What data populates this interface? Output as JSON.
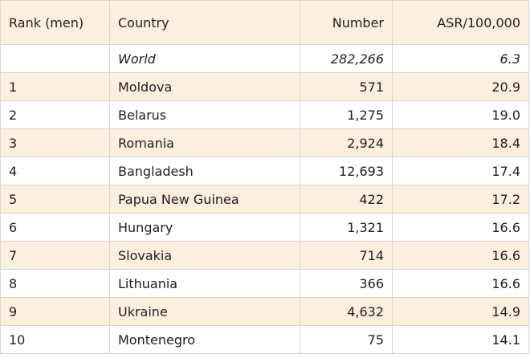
{
  "columns": [
    "Rank (men)",
    "Country",
    "Number",
    "ASR/100,000"
  ],
  "world_row": {
    "rank": "",
    "country": "World",
    "number": "282,266",
    "asr": "6.3"
  },
  "rows": [
    {
      "rank": "1",
      "country": "Moldova",
      "number": "571",
      "asr": "20.9"
    },
    {
      "rank": "2",
      "country": "Belarus",
      "number": "1,275",
      "asr": "19.0"
    },
    {
      "rank": "3",
      "country": "Romania",
      "number": "2,924",
      "asr": "18.4"
    },
    {
      "rank": "4",
      "country": "Bangladesh",
      "number": "12,693",
      "asr": "17.4"
    },
    {
      "rank": "5",
      "country": "Papua New Guinea",
      "number": "422",
      "asr": "17.2"
    },
    {
      "rank": "6",
      "country": "Hungary",
      "number": "1,321",
      "asr": "16.6"
    },
    {
      "rank": "7",
      "country": "Slovakia",
      "number": "714",
      "asr": "16.6"
    },
    {
      "rank": "8",
      "country": "Lithuania",
      "number": "366",
      "asr": "16.6"
    },
    {
      "rank": "9",
      "country": "Ukraine",
      "number": "4,632",
      "asr": "14.9"
    },
    {
      "rank": "10",
      "country": "Montenegro",
      "number": "75",
      "asr": "14.1"
    }
  ],
  "colors": {
    "header_bg": "#fbefdd",
    "stripe_bg": "#fbefdd",
    "border": "#d9d5cf"
  }
}
